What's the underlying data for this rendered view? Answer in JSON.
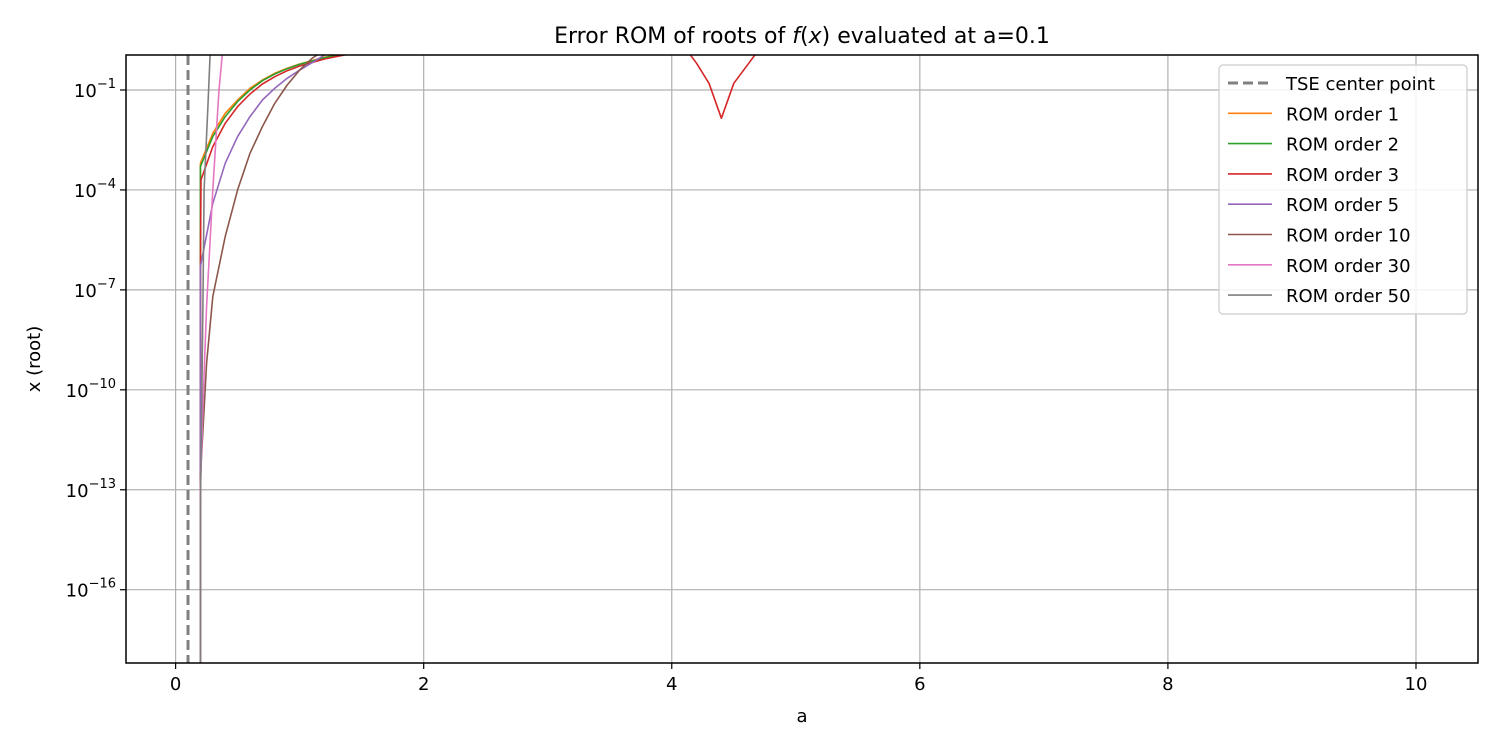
{
  "chart_data": {
    "type": "line",
    "title_parts": {
      "prefix": "Error ROM of roots of ",
      "fn": "f",
      "open": "(",
      "var": "x",
      "close": ")",
      "suffix": " evaluated at a=0.1"
    },
    "xlabel": "a",
    "ylabel": "x (root)",
    "xlim": [
      -0.4,
      10.5
    ],
    "ylim_log10": [
      -18.2,
      0.05
    ],
    "y_scale": "log",
    "grid": true,
    "legend_position": "top-right",
    "x_ticks": [
      {
        "value": 0,
        "label": "0"
      },
      {
        "value": 2,
        "label": "2"
      },
      {
        "value": 4,
        "label": "4"
      },
      {
        "value": 6,
        "label": "6"
      },
      {
        "value": 8,
        "label": "8"
      },
      {
        "value": 10,
        "label": "10"
      }
    ],
    "y_ticks": [
      {
        "exp": -1,
        "base": "10",
        "sup": "−1"
      },
      {
        "exp": -4,
        "base": "10",
        "sup": "−4"
      },
      {
        "exp": -7,
        "base": "10",
        "sup": "−7"
      },
      {
        "exp": -10,
        "base": "10",
        "sup": "−10"
      },
      {
        "exp": -13,
        "base": "10",
        "sup": "−13"
      },
      {
        "exp": -16,
        "base": "10",
        "sup": "−16"
      }
    ],
    "vline": {
      "name": "TSE center point",
      "x": 0.1,
      "color": "#808080"
    },
    "series": [
      {
        "name": "ROM order 1",
        "color": "#ff7f0e",
        "points": [
          [
            0.2,
            -18.5
          ],
          [
            0.2,
            -3.2
          ],
          [
            0.3,
            -2.3
          ],
          [
            0.4,
            -1.7
          ],
          [
            0.5,
            -1.3
          ],
          [
            0.6,
            -0.95
          ],
          [
            0.7,
            -0.7
          ],
          [
            0.8,
            -0.5
          ],
          [
            0.9,
            -0.35
          ],
          [
            1.0,
            -0.22
          ],
          [
            1.2,
            -0.02
          ],
          [
            1.4,
            0.12
          ],
          [
            1.6,
            0.22
          ],
          [
            1.8,
            0.32
          ]
        ]
      },
      {
        "name": "ROM order 2",
        "color": "#2ca02c",
        "points": [
          [
            0.2,
            -18.5
          ],
          [
            0.2,
            -3.3
          ],
          [
            0.3,
            -2.4
          ],
          [
            0.4,
            -1.8
          ],
          [
            0.5,
            -1.35
          ],
          [
            0.6,
            -1.0
          ],
          [
            0.7,
            -0.72
          ],
          [
            0.8,
            -0.52
          ],
          [
            0.9,
            -0.36
          ],
          [
            1.0,
            -0.23
          ],
          [
            1.2,
            -0.03
          ],
          [
            1.4,
            0.11
          ],
          [
            1.6,
            0.21
          ],
          [
            1.8,
            0.31
          ]
        ]
      },
      {
        "name": "ROM order 3",
        "color": "#d62728",
        "points": [
          [
            0.2,
            -18.5
          ],
          [
            0.2,
            -6.4
          ],
          [
            0.205,
            -3.7
          ],
          [
            0.3,
            -2.7
          ],
          [
            0.4,
            -2.0
          ],
          [
            0.5,
            -1.5
          ],
          [
            0.6,
            -1.12
          ],
          [
            0.7,
            -0.82
          ],
          [
            0.8,
            -0.6
          ],
          [
            0.9,
            -0.42
          ],
          [
            1.0,
            -0.28
          ],
          [
            1.2,
            -0.07
          ],
          [
            1.4,
            0.08
          ],
          [
            1.6,
            0.18
          ],
          [
            1.8,
            0.3
          ],
          [
            null,
            null
          ],
          [
            4.1,
            0.3
          ],
          [
            4.2,
            -0.2
          ],
          [
            4.3,
            -0.8
          ],
          [
            4.4,
            -1.85
          ],
          [
            4.5,
            -0.8
          ],
          [
            4.6,
            -0.3
          ],
          [
            4.7,
            0.2
          ]
        ]
      },
      {
        "name": "ROM order 5",
        "color": "#9467bd",
        "points": [
          [
            0.2,
            -18.5
          ],
          [
            0.2,
            -6.3
          ],
          [
            0.3,
            -4.4
          ],
          [
            0.4,
            -3.2
          ],
          [
            0.5,
            -2.4
          ],
          [
            0.6,
            -1.8
          ],
          [
            0.7,
            -1.3
          ],
          [
            0.8,
            -0.95
          ],
          [
            0.9,
            -0.65
          ],
          [
            1.0,
            -0.4
          ],
          [
            1.1,
            -0.18
          ],
          [
            1.2,
            0.05
          ],
          [
            1.3,
            0.2
          ]
        ]
      },
      {
        "name": "ROM order 10",
        "color": "#8c564b",
        "points": [
          [
            0.2,
            -18.5
          ],
          [
            0.2,
            -12.6
          ],
          [
            0.25,
            -9.2
          ],
          [
            0.3,
            -7.2
          ],
          [
            0.4,
            -5.4
          ],
          [
            0.5,
            -4.0
          ],
          [
            0.6,
            -2.9
          ],
          [
            0.7,
            -2.1
          ],
          [
            0.8,
            -1.4
          ],
          [
            0.9,
            -0.85
          ],
          [
            1.0,
            -0.4
          ],
          [
            1.1,
            -0.05
          ],
          [
            1.2,
            0.2
          ]
        ]
      },
      {
        "name": "ROM order 30",
        "color": "#e377c2",
        "points": [
          [
            0.2,
            -18.5
          ],
          [
            0.2,
            -13.0
          ],
          [
            0.22,
            -10.5
          ],
          [
            0.25,
            -7.5
          ],
          [
            0.3,
            -4.0
          ],
          [
            0.35,
            -1.0
          ],
          [
            0.38,
            0.2
          ]
        ]
      },
      {
        "name": "ROM order 50",
        "color": "#7f7f7f",
        "points": [
          [
            0.2,
            -18.5
          ],
          [
            0.2,
            -13.5
          ],
          [
            0.21,
            -10.5
          ],
          [
            0.22,
            -7.5
          ],
          [
            0.23,
            -4.0
          ],
          [
            0.26,
            -1.5
          ],
          [
            0.28,
            0.2
          ]
        ]
      }
    ]
  }
}
